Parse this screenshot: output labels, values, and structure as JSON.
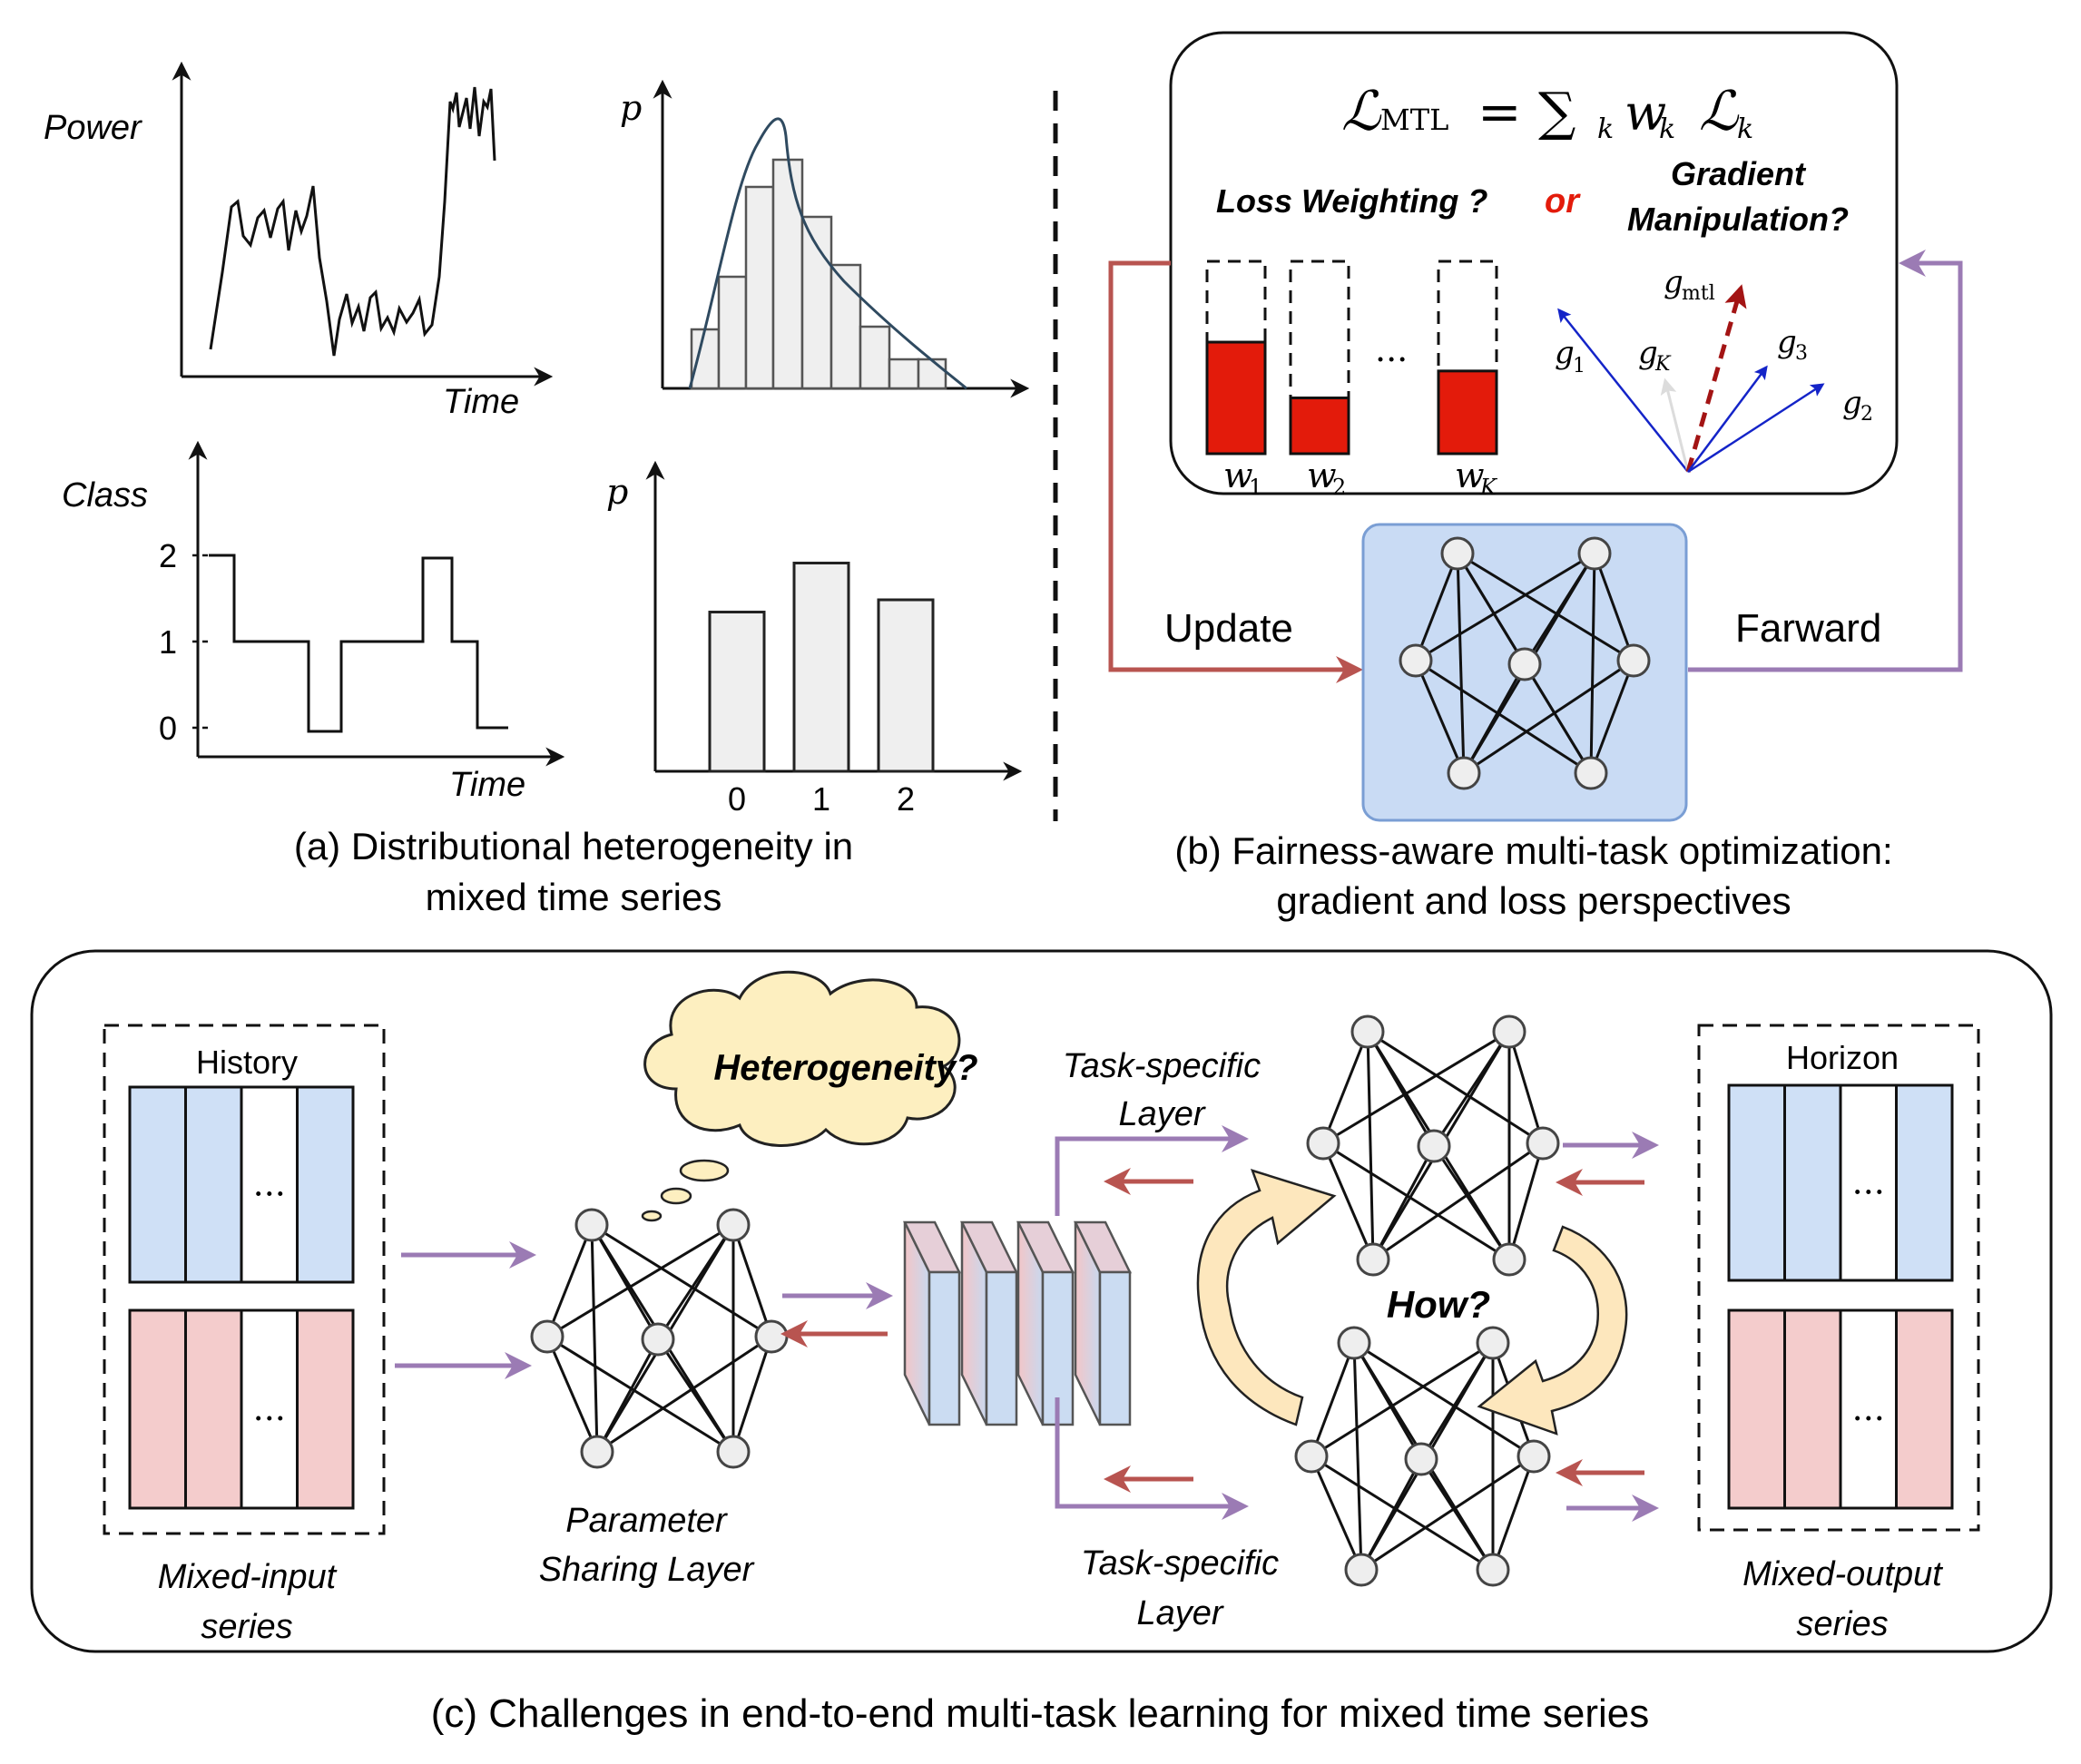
{
  "colors": {
    "purple": "#9b7bb4",
    "red": "#b85450",
    "bar_red": "#e31b0b",
    "blue_fill": "#cfe0f6",
    "pink_fill": "#f4cccc",
    "cloud": "#fdefc0",
    "arc": "#fde7bd",
    "nn_box": "#b7cff0",
    "hist_fill": "#efefef",
    "curve": "#2f4a60",
    "blue_vec": "#1424c8",
    "dark_red_vec": "#a31414"
  },
  "panel_a": {
    "caption_line1": "(a) Distributional heterogeneity in",
    "caption_line2": "mixed time series",
    "power_label": "Power",
    "time_label_top": "Time",
    "class_label": "Class",
    "time_label_bottom": "Time",
    "p_label_top": "p",
    "p_label_bottom": "p",
    "class_ticks": [
      "2",
      "1",
      "0"
    ],
    "bar_categories": [
      "0",
      "1",
      "2"
    ]
  },
  "chart_data": [
    {
      "type": "bar",
      "categories": [
        "0",
        "1",
        "2"
      ],
      "values": [
        0.39,
        0.51,
        0.42
      ],
      "ylabel": "p",
      "ylim": [
        0,
        1
      ]
    }
  ],
  "panel_b": {
    "formula_main": "ℒ",
    "formula_sub_mtl": "MTL",
    "formula_eq": "= ∑",
    "formula_k": "k",
    "formula_w": "w",
    "formula_wk": "k",
    "formula_L": "ℒ",
    "formula_Lk": "k",
    "loss_weighting": "Loss Weighting ?",
    "or": "or",
    "gradient_line1": "Gradient",
    "gradient_line2": "Manipulation?",
    "weights": [
      {
        "base": "w",
        "sub": "1",
        "level": 0.58
      },
      {
        "base": "w",
        "sub": "2",
        "level": 0.29
      },
      {
        "base": "w",
        "sub": "K",
        "level": 0.43
      }
    ],
    "weights_ellipsis": "...",
    "grad_labels": {
      "g1": "g",
      "g1_sub": "1",
      "gK": "g",
      "gK_sub": "K",
      "gmtl": "g",
      "gmtl_sub": "mtl",
      "g3": "g",
      "g3_sub": "3",
      "g2": "g",
      "g2_sub": "2"
    },
    "update_label": "Update",
    "forward_label": "Farward",
    "caption_line1": "(b) Fairness-aware multi-task optimization:",
    "caption_line2": "gradient and loss perspectives"
  },
  "panel_c": {
    "history_label": "History",
    "horizon_label": "Horizon",
    "ellipsis": "...",
    "mixed_input_line1": "Mixed-input",
    "mixed_input_line2": "series",
    "mixed_output_line1": "Mixed-output",
    "mixed_output_line2": "series",
    "heterogeneity": "Heterogeneity?",
    "param_line1": "Parameter",
    "param_line2": "Sharing Layer",
    "task_top_line1": "Task-specific",
    "task_top_line2": "Layer",
    "task_bottom_line1": "Task-specific",
    "task_bottom_line2": "Layer",
    "how": "How?",
    "caption": "(c) Challenges in end-to-end multi-task learning for mixed time series"
  }
}
